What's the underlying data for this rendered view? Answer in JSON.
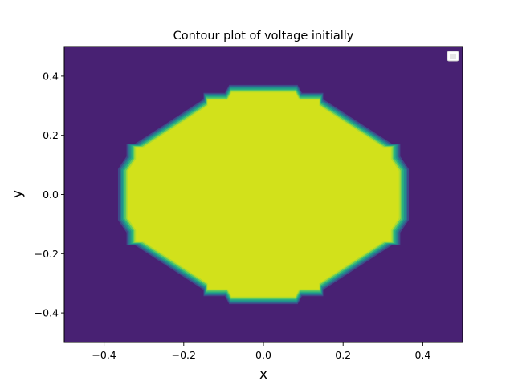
{
  "chart_data": {
    "type": "contour",
    "title": "Contour plot of voltage initially",
    "xlabel": "x",
    "ylabel": "y",
    "xlim": [
      -0.5,
      0.5
    ],
    "ylim": [
      -0.5,
      0.5
    ],
    "xticks": [
      -0.4,
      -0.2,
      0.0,
      0.2,
      0.4
    ],
    "yticks": [
      -0.4,
      -0.2,
      0.0,
      0.2,
      0.4
    ],
    "xtick_labels": [
      "−0.4",
      "−0.2",
      "0.0",
      "0.2",
      "0.4"
    ],
    "ytick_labels": [
      "−0.4",
      "−0.2",
      "0.0",
      "0.2",
      "0.4"
    ],
    "grid": false,
    "legend": {
      "placement": "top-right",
      "entries": []
    },
    "colormap": "viridis",
    "background_color": "#482173",
    "inner_color": "#d2e11b",
    "contour_level_colors": [
      "#482173",
      "#3e4a89",
      "#2d708e",
      "#21918c",
      "#2bb07f",
      "#5ec962",
      "#addc30",
      "#d2e11b"
    ],
    "region_boundary": [
      [
        0.08,
        0.345
      ],
      [
        0.09,
        0.32
      ],
      [
        0.14,
        0.32
      ],
      [
        0.14,
        0.3
      ],
      [
        0.3,
        0.16
      ],
      [
        0.32,
        0.16
      ],
      [
        0.32,
        0.12
      ],
      [
        0.34,
        0.08
      ],
      [
        0.34,
        -0.08
      ],
      [
        0.32,
        -0.12
      ],
      [
        0.32,
        -0.16
      ],
      [
        0.3,
        -0.16
      ],
      [
        0.14,
        -0.3
      ],
      [
        0.14,
        -0.32
      ],
      [
        0.09,
        -0.32
      ],
      [
        0.08,
        -0.345
      ],
      [
        -0.08,
        -0.345
      ],
      [
        -0.09,
        -0.32
      ],
      [
        -0.14,
        -0.32
      ],
      [
        -0.14,
        -0.3
      ],
      [
        -0.3,
        -0.16
      ],
      [
        -0.32,
        -0.16
      ],
      [
        -0.32,
        -0.12
      ],
      [
        -0.34,
        -0.08
      ],
      [
        -0.34,
        0.08
      ],
      [
        -0.32,
        0.12
      ],
      [
        -0.32,
        0.16
      ],
      [
        -0.3,
        0.16
      ],
      [
        -0.14,
        0.3
      ],
      [
        -0.14,
        0.32
      ],
      [
        -0.09,
        0.32
      ],
      [
        -0.08,
        0.345
      ]
    ],
    "transition_width": 0.025
  }
}
